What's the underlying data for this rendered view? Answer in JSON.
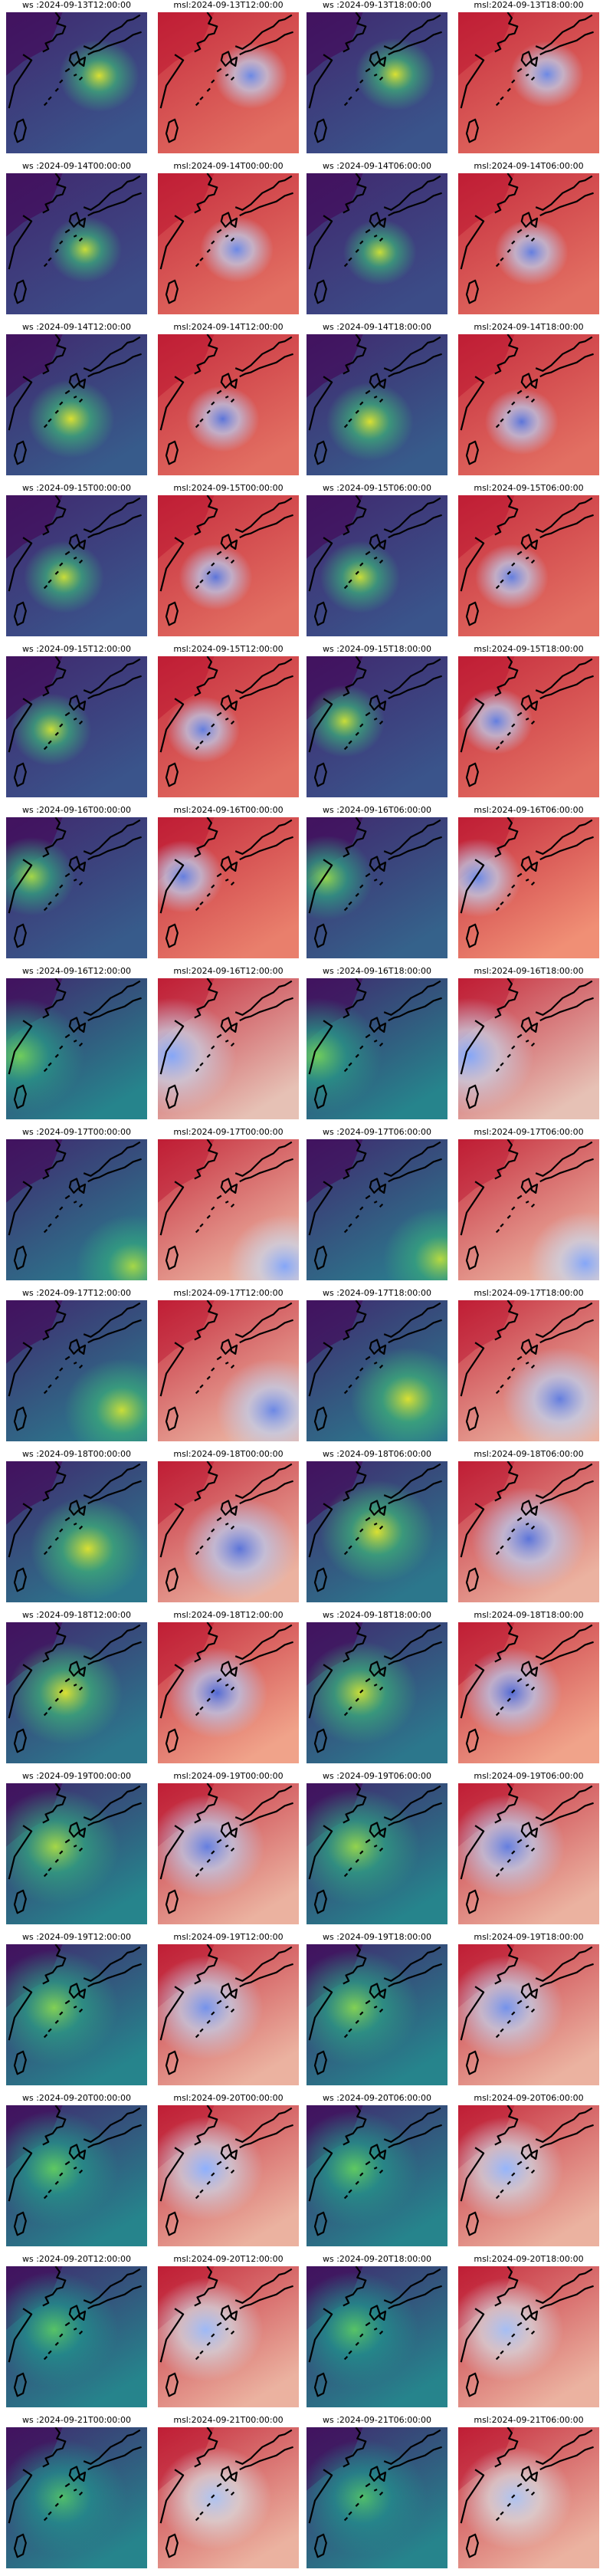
{
  "chart_data": {
    "type": "heatmap",
    "columns": [
      "ws",
      "msl",
      "ws",
      "msl"
    ],
    "colormaps": {
      "ws": "viridis",
      "msl": "coolwarm"
    },
    "colors": {
      "viridis": [
        "#440154",
        "#3b528b",
        "#21918c",
        "#5ec962",
        "#fde725"
      ],
      "coolwarm": [
        "#3b4cc0",
        "#8db0fe",
        "#dddddd",
        "#f4987a",
        "#b40426"
      ],
      "coastline": "#000000"
    },
    "panels": [
      {
        "title": "ws :2024-09-13T12:00:00",
        "var": "ws",
        "center": [
          0.66,
          0.45
        ],
        "intensity": 0.9,
        "broad": 0.25
      },
      {
        "title": "msl:2024-09-13T12:00:00",
        "var": "msl",
        "center": [
          0.66,
          0.45
        ],
        "intensity": 0.7,
        "broad": 0.2
      },
      {
        "title": "ws :2024-09-13T18:00:00",
        "var": "ws",
        "center": [
          0.63,
          0.44
        ],
        "intensity": 0.9,
        "broad": 0.25
      },
      {
        "title": "msl:2024-09-13T18:00:00",
        "var": "msl",
        "center": [
          0.63,
          0.44
        ],
        "intensity": 0.7,
        "broad": 0.2
      },
      {
        "title": "ws :2024-09-14T00:00:00",
        "var": "ws",
        "center": [
          0.56,
          0.54
        ],
        "intensity": 0.85,
        "broad": 0.2
      },
      {
        "title": "msl:2024-09-14T00:00:00",
        "var": "msl",
        "center": [
          0.56,
          0.54
        ],
        "intensity": 0.7,
        "broad": 0.2
      },
      {
        "title": "ws :2024-09-14T06:00:00",
        "var": "ws",
        "center": [
          0.52,
          0.56
        ],
        "intensity": 0.85,
        "broad": 0.2
      },
      {
        "title": "msl:2024-09-14T06:00:00",
        "var": "msl",
        "center": [
          0.52,
          0.56
        ],
        "intensity": 0.75,
        "broad": 0.2
      },
      {
        "title": "ws :2024-09-14T12:00:00",
        "var": "ws",
        "center": [
          0.46,
          0.6
        ],
        "intensity": 0.9,
        "broad": 0.3
      },
      {
        "title": "msl:2024-09-14T12:00:00",
        "var": "msl",
        "center": [
          0.46,
          0.6
        ],
        "intensity": 0.8,
        "broad": 0.2
      },
      {
        "title": "ws :2024-09-14T18:00:00",
        "var": "ws",
        "center": [
          0.45,
          0.62
        ],
        "intensity": 0.9,
        "broad": 0.3
      },
      {
        "title": "msl:2024-09-14T18:00:00",
        "var": "msl",
        "center": [
          0.45,
          0.62
        ],
        "intensity": 0.8,
        "broad": 0.2
      },
      {
        "title": "ws :2024-09-15T00:00:00",
        "var": "ws",
        "center": [
          0.41,
          0.58
        ],
        "intensity": 0.85,
        "broad": 0.25
      },
      {
        "title": "msl:2024-09-15T00:00:00",
        "var": "msl",
        "center": [
          0.41,
          0.58
        ],
        "intensity": 0.8,
        "broad": 0.2
      },
      {
        "title": "ws :2024-09-15T06:00:00",
        "var": "ws",
        "center": [
          0.38,
          0.58
        ],
        "intensity": 0.85,
        "broad": 0.25
      },
      {
        "title": "msl:2024-09-15T06:00:00",
        "var": "msl",
        "center": [
          0.38,
          0.58
        ],
        "intensity": 0.75,
        "broad": 0.2
      },
      {
        "title": "ws :2024-09-15T12:00:00",
        "var": "ws",
        "center": [
          0.32,
          0.52
        ],
        "intensity": 0.85,
        "broad": 0.25
      },
      {
        "title": "msl:2024-09-15T12:00:00",
        "var": "msl",
        "center": [
          0.32,
          0.52
        ],
        "intensity": 0.75,
        "broad": 0.2
      },
      {
        "title": "ws :2024-09-15T18:00:00",
        "var": "ws",
        "center": [
          0.27,
          0.46
        ],
        "intensity": 0.85,
        "broad": 0.25
      },
      {
        "title": "msl:2024-09-15T18:00:00",
        "var": "msl",
        "center": [
          0.27,
          0.46
        ],
        "intensity": 0.75,
        "broad": 0.2
      },
      {
        "title": "ws :2024-09-16T00:00:00",
        "var": "ws",
        "center": [
          0.18,
          0.42
        ],
        "intensity": 0.75,
        "broad": 0.3
      },
      {
        "title": "msl:2024-09-16T00:00:00",
        "var": "msl",
        "center": [
          0.18,
          0.42
        ],
        "intensity": 0.75,
        "broad": 0.25
      },
      {
        "title": "ws :2024-09-16T06:00:00",
        "var": "ws",
        "center": [
          0.14,
          0.43
        ],
        "intensity": 0.7,
        "broad": 0.35
      },
      {
        "title": "msl:2024-09-16T06:00:00",
        "var": "msl",
        "center": [
          0.14,
          0.43
        ],
        "intensity": 0.7,
        "broad": 0.3
      },
      {
        "title": "ws :2024-09-16T12:00:00",
        "var": "ws",
        "center": [
          0.1,
          0.55
        ],
        "intensity": 0.6,
        "broad": 0.6
      },
      {
        "title": "msl:2024-09-16T12:00:00",
        "var": "msl",
        "center": [
          0.1,
          0.55
        ],
        "intensity": 0.55,
        "broad": 0.6
      },
      {
        "title": "ws :2024-09-16T18:00:00",
        "var": "ws",
        "center": [
          0.08,
          0.55
        ],
        "intensity": 0.6,
        "broad": 0.6
      },
      {
        "title": "msl:2024-09-16T18:00:00",
        "var": "msl",
        "center": [
          0.08,
          0.55
        ],
        "intensity": 0.55,
        "broad": 0.6
      },
      {
        "title": "ws :2024-09-17T00:00:00",
        "var": "ws",
        "center": [
          0.9,
          0.9
        ],
        "intensity": 0.75,
        "broad": 0.5
      },
      {
        "title": "msl:2024-09-17T00:00:00",
        "var": "msl",
        "center": [
          0.9,
          0.9
        ],
        "intensity": 0.55,
        "broad": 0.5
      },
      {
        "title": "ws :2024-09-17T06:00:00",
        "var": "ws",
        "center": [
          0.95,
          0.85
        ],
        "intensity": 0.8,
        "broad": 0.5
      },
      {
        "title": "msl:2024-09-17T06:00:00",
        "var": "msl",
        "center": [
          0.9,
          0.88
        ],
        "intensity": 0.55,
        "broad": 0.5
      },
      {
        "title": "ws :2024-09-17T12:00:00",
        "var": "ws",
        "center": [
          0.82,
          0.78
        ],
        "intensity": 0.85,
        "broad": 0.5
      },
      {
        "title": "msl:2024-09-17T12:00:00",
        "var": "msl",
        "center": [
          0.82,
          0.78
        ],
        "intensity": 0.7,
        "broad": 0.5
      },
      {
        "title": "ws :2024-09-17T18:00:00",
        "var": "ws",
        "center": [
          0.72,
          0.7
        ],
        "intensity": 0.9,
        "broad": 0.5
      },
      {
        "title": "msl:2024-09-17T18:00:00",
        "var": "msl",
        "center": [
          0.72,
          0.7
        ],
        "intensity": 0.75,
        "broad": 0.5
      },
      {
        "title": "ws :2024-09-18T00:00:00",
        "var": "ws",
        "center": [
          0.58,
          0.62
        ],
        "intensity": 0.9,
        "broad": 0.5
      },
      {
        "title": "msl:2024-09-18T00:00:00",
        "var": "msl",
        "center": [
          0.58,
          0.62
        ],
        "intensity": 0.8,
        "broad": 0.5
      },
      {
        "title": "ws :2024-09-18T06:00:00",
        "var": "ws",
        "center": [
          0.5,
          0.5
        ],
        "intensity": 0.9,
        "broad": 0.5
      },
      {
        "title": "msl:2024-09-18T06:00:00",
        "var": "msl",
        "center": [
          0.5,
          0.55
        ],
        "intensity": 0.8,
        "broad": 0.5
      },
      {
        "title": "ws :2024-09-18T12:00:00",
        "var": "ws",
        "center": [
          0.42,
          0.5
        ],
        "intensity": 0.9,
        "broad": 0.5
      },
      {
        "title": "msl:2024-09-18T12:00:00",
        "var": "msl",
        "center": [
          0.42,
          0.5
        ],
        "intensity": 0.85,
        "broad": 0.4
      },
      {
        "title": "ws :2024-09-18T18:00:00",
        "var": "ws",
        "center": [
          0.38,
          0.5
        ],
        "intensity": 0.85,
        "broad": 0.5
      },
      {
        "title": "msl:2024-09-18T18:00:00",
        "var": "msl",
        "center": [
          0.38,
          0.5
        ],
        "intensity": 0.85,
        "broad": 0.4
      },
      {
        "title": "ws :2024-09-19T00:00:00",
        "var": "ws",
        "center": [
          0.35,
          0.45
        ],
        "intensity": 0.75,
        "broad": 0.6
      },
      {
        "title": "msl:2024-09-19T00:00:00",
        "var": "msl",
        "center": [
          0.35,
          0.45
        ],
        "intensity": 0.75,
        "broad": 0.5
      },
      {
        "title": "ws :2024-09-19T06:00:00",
        "var": "ws",
        "center": [
          0.35,
          0.45
        ],
        "intensity": 0.7,
        "broad": 0.6
      },
      {
        "title": "msl:2024-09-19T06:00:00",
        "var": "msl",
        "center": [
          0.35,
          0.45
        ],
        "intensity": 0.75,
        "broad": 0.5
      },
      {
        "title": "ws :2024-09-19T12:00:00",
        "var": "ws",
        "center": [
          0.34,
          0.45
        ],
        "intensity": 0.65,
        "broad": 0.6
      },
      {
        "title": "msl:2024-09-19T12:00:00",
        "var": "msl",
        "center": [
          0.34,
          0.45
        ],
        "intensity": 0.65,
        "broad": 0.5
      },
      {
        "title": "ws :2024-09-19T18:00:00",
        "var": "ws",
        "center": [
          0.34,
          0.45
        ],
        "intensity": 0.65,
        "broad": 0.6
      },
      {
        "title": "msl:2024-09-19T18:00:00",
        "var": "msl",
        "center": [
          0.34,
          0.45
        ],
        "intensity": 0.65,
        "broad": 0.5
      },
      {
        "title": "ws :2024-09-20T00:00:00",
        "var": "ws",
        "center": [
          0.34,
          0.45
        ],
        "intensity": 0.55,
        "broad": 0.6
      },
      {
        "title": "msl:2024-09-20T00:00:00",
        "var": "msl",
        "center": [
          0.34,
          0.45
        ],
        "intensity": 0.5,
        "broad": 0.5
      },
      {
        "title": "ws :2024-09-20T06:00:00",
        "var": "ws",
        "center": [
          0.34,
          0.45
        ],
        "intensity": 0.55,
        "broad": 0.6
      },
      {
        "title": "msl:2024-09-20T06:00:00",
        "var": "msl",
        "center": [
          0.34,
          0.45
        ],
        "intensity": 0.45,
        "broad": 0.5
      },
      {
        "title": "ws :2024-09-20T12:00:00",
        "var": "ws",
        "center": [
          0.34,
          0.45
        ],
        "intensity": 0.5,
        "broad": 0.6
      },
      {
        "title": "msl:2024-09-20T12:00:00",
        "var": "msl",
        "center": [
          0.34,
          0.45
        ],
        "intensity": 0.4,
        "broad": 0.5
      },
      {
        "title": "ws :2024-09-20T18:00:00",
        "var": "ws",
        "center": [
          0.34,
          0.45
        ],
        "intensity": 0.5,
        "broad": 0.6
      },
      {
        "title": "msl:2024-09-20T18:00:00",
        "var": "msl",
        "center": [
          0.34,
          0.45
        ],
        "intensity": 0.35,
        "broad": 0.5
      },
      {
        "title": "ws :2024-09-21T00:00:00",
        "var": "ws",
        "center": [
          0.4,
          0.5
        ],
        "intensity": 0.45,
        "broad": 0.6
      },
      {
        "title": "msl:2024-09-21T00:00:00",
        "var": "msl",
        "center": [
          0.4,
          0.5
        ],
        "intensity": 0.3,
        "broad": 0.5
      },
      {
        "title": "ws :2024-09-21T06:00:00",
        "var": "ws",
        "center": [
          0.4,
          0.5
        ],
        "intensity": 0.45,
        "broad": 0.6
      },
      {
        "title": "msl:2024-09-21T06:00:00",
        "var": "msl",
        "center": [
          0.4,
          0.5
        ],
        "intensity": 0.3,
        "broad": 0.5
      }
    ]
  }
}
